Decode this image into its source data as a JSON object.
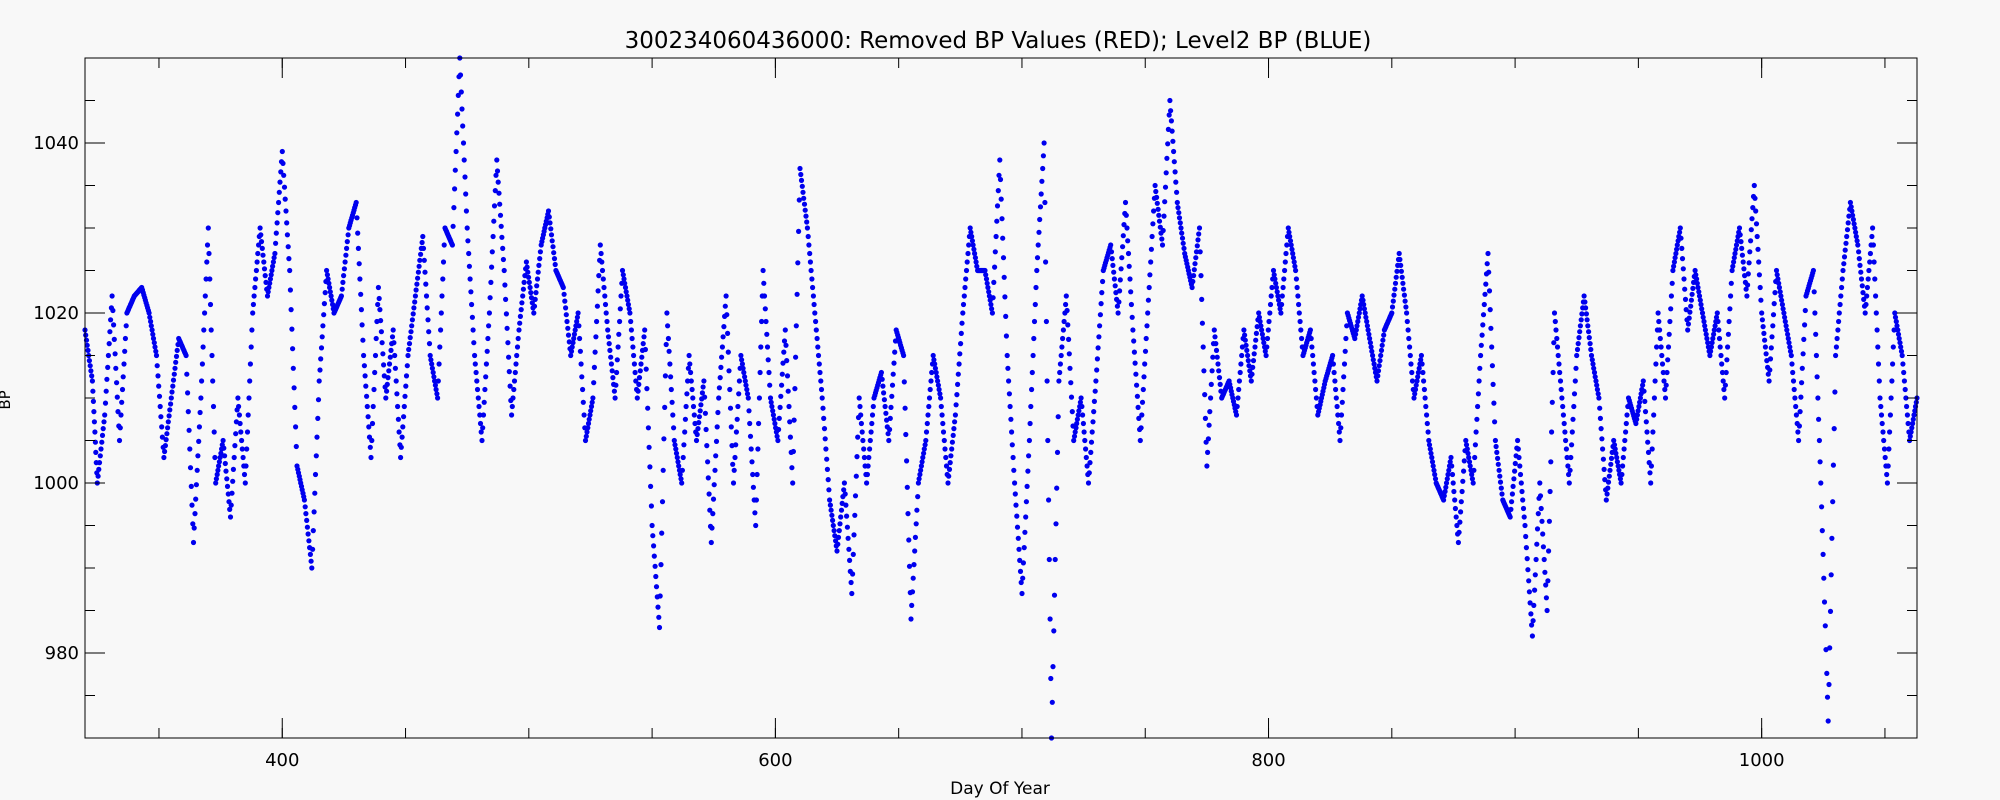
{
  "chart_data": {
    "type": "scatter",
    "title": "300234060436000: Removed BP Values (RED); Level2 BP (BLUE)",
    "xlabel": "Day Of Year",
    "ylabel": "BP",
    "xlim": [
      320,
      1063
    ],
    "ylim": [
      970,
      1050
    ],
    "x_ticks": [
      400,
      600,
      800,
      1000
    ],
    "y_ticks": [
      980,
      1000,
      1020,
      1040
    ],
    "x_minor_step": 50,
    "y_minor_step": 5,
    "grid": false,
    "legend": "none",
    "series": [
      {
        "color": "#0000ee",
        "marker": "dot",
        "points": [
          [
            320,
            1018
          ],
          [
            323,
            1012
          ],
          [
            325,
            1000
          ],
          [
            328,
            1008
          ],
          [
            331,
            1022
          ],
          [
            334,
            1005
          ],
          [
            337,
            1020
          ],
          [
            340,
            1022
          ],
          [
            343,
            1023
          ],
          [
            346,
            1020
          ],
          [
            349,
            1015
          ],
          [
            352,
            1003
          ],
          [
            355,
            1010
          ],
          [
            358,
            1017
          ],
          [
            361,
            1015
          ],
          [
            364,
            993
          ],
          [
            367,
            1010
          ],
          [
            370,
            1030
          ],
          [
            373,
            1000
          ],
          [
            376,
            1005
          ],
          [
            379,
            996
          ],
          [
            382,
            1010
          ],
          [
            385,
            1000
          ],
          [
            388,
            1020
          ],
          [
            391,
            1030
          ],
          [
            394,
            1022
          ],
          [
            397,
            1027
          ],
          [
            400,
            1039
          ],
          [
            403,
            1025
          ],
          [
            406,
            1002
          ],
          [
            409,
            998
          ],
          [
            412,
            990
          ],
          [
            415,
            1012
          ],
          [
            418,
            1025
          ],
          [
            421,
            1020
          ],
          [
            424,
            1022
          ],
          [
            427,
            1030
          ],
          [
            430,
            1033
          ],
          [
            433,
            1015
          ],
          [
            436,
            1003
          ],
          [
            439,
            1023
          ],
          [
            442,
            1010
          ],
          [
            445,
            1018
          ],
          [
            448,
            1003
          ],
          [
            451,
            1015
          ],
          [
            454,
            1022
          ],
          [
            457,
            1029
          ],
          [
            460,
            1015
          ],
          [
            463,
            1010
          ],
          [
            466,
            1030
          ],
          [
            469,
            1028
          ],
          [
            472,
            1050
          ],
          [
            475,
            1030
          ],
          [
            478,
            1015
          ],
          [
            481,
            1005
          ],
          [
            484,
            1020
          ],
          [
            487,
            1038
          ],
          [
            490,
            1025
          ],
          [
            493,
            1008
          ],
          [
            496,
            1018
          ],
          [
            499,
            1026
          ],
          [
            502,
            1020
          ],
          [
            505,
            1028
          ],
          [
            508,
            1032
          ],
          [
            511,
            1025
          ],
          [
            514,
            1023
          ],
          [
            517,
            1015
          ],
          [
            520,
            1020
          ],
          [
            523,
            1005
          ],
          [
            526,
            1010
          ],
          [
            529,
            1028
          ],
          [
            532,
            1018
          ],
          [
            535,
            1010
          ],
          [
            538,
            1025
          ],
          [
            541,
            1020
          ],
          [
            544,
            1010
          ],
          [
            547,
            1018
          ],
          [
            550,
            995
          ],
          [
            553,
            983
          ],
          [
            556,
            1020
          ],
          [
            559,
            1005
          ],
          [
            562,
            1000
          ],
          [
            565,
            1015
          ],
          [
            568,
            1005
          ],
          [
            571,
            1012
          ],
          [
            574,
            993
          ],
          [
            577,
            1010
          ],
          [
            580,
            1022
          ],
          [
            583,
            1000
          ],
          [
            586,
            1015
          ],
          [
            589,
            1010
          ],
          [
            592,
            995
          ],
          [
            595,
            1025
          ],
          [
            598,
            1010
          ],
          [
            601,
            1005
          ],
          [
            604,
            1018
          ],
          [
            607,
            1000
          ],
          [
            610,
            1037
          ],
          [
            613,
            1030
          ],
          [
            616,
            1020
          ],
          [
            619,
            1010
          ],
          [
            622,
            998
          ],
          [
            625,
            992
          ],
          [
            628,
            1000
          ],
          [
            631,
            987
          ],
          [
            634,
            1010
          ],
          [
            637,
            1000
          ],
          [
            640,
            1010
          ],
          [
            643,
            1013
          ],
          [
            646,
            1005
          ],
          [
            649,
            1018
          ],
          [
            652,
            1015
          ],
          [
            655,
            984
          ],
          [
            658,
            1000
          ],
          [
            661,
            1005
          ],
          [
            664,
            1015
          ],
          [
            667,
            1010
          ],
          [
            670,
            1000
          ],
          [
            673,
            1008
          ],
          [
            676,
            1020
          ],
          [
            679,
            1030
          ],
          [
            682,
            1025
          ],
          [
            685,
            1025
          ],
          [
            688,
            1020
          ],
          [
            691,
            1038
          ],
          [
            694,
            1015
          ],
          [
            697,
            1000
          ],
          [
            700,
            987
          ],
          [
            703,
            1005
          ],
          [
            706,
            1025
          ],
          [
            709,
            1040
          ],
          [
            712,
            970
          ],
          [
            715,
            1012
          ],
          [
            718,
            1022
          ],
          [
            721,
            1005
          ],
          [
            724,
            1010
          ],
          [
            727,
            1000
          ],
          [
            730,
            1012
          ],
          [
            733,
            1025
          ],
          [
            736,
            1028
          ],
          [
            739,
            1020
          ],
          [
            742,
            1033
          ],
          [
            745,
            1018
          ],
          [
            748,
            1005
          ],
          [
            751,
            1020
          ],
          [
            754,
            1035
          ],
          [
            757,
            1028
          ],
          [
            760,
            1045
          ],
          [
            763,
            1033
          ],
          [
            766,
            1027
          ],
          [
            769,
            1023
          ],
          [
            772,
            1030
          ],
          [
            775,
            1002
          ],
          [
            778,
            1018
          ],
          [
            781,
            1010
          ],
          [
            784,
            1012
          ],
          [
            787,
            1008
          ],
          [
            790,
            1018
          ],
          [
            793,
            1012
          ],
          [
            796,
            1020
          ],
          [
            799,
            1015
          ],
          [
            802,
            1025
          ],
          [
            805,
            1020
          ],
          [
            808,
            1030
          ],
          [
            811,
            1025
          ],
          [
            814,
            1015
          ],
          [
            817,
            1018
          ],
          [
            820,
            1008
          ],
          [
            823,
            1012
          ],
          [
            826,
            1015
          ],
          [
            829,
            1005
          ],
          [
            832,
            1020
          ],
          [
            835,
            1017
          ],
          [
            838,
            1022
          ],
          [
            841,
            1017
          ],
          [
            844,
            1012
          ],
          [
            847,
            1018
          ],
          [
            850,
            1020
          ],
          [
            853,
            1027
          ],
          [
            856,
            1020
          ],
          [
            859,
            1010
          ],
          [
            862,
            1015
          ],
          [
            865,
            1005
          ],
          [
            868,
            1000
          ],
          [
            871,
            998
          ],
          [
            874,
            1003
          ],
          [
            877,
            993
          ],
          [
            880,
            1005
          ],
          [
            883,
            1000
          ],
          [
            886,
            1015
          ],
          [
            889,
            1027
          ],
          [
            892,
            1005
          ],
          [
            895,
            998
          ],
          [
            898,
            996
          ],
          [
            901,
            1005
          ],
          [
            904,
            995
          ],
          [
            907,
            982
          ],
          [
            910,
            1000
          ],
          [
            913,
            985
          ],
          [
            916,
            1020
          ],
          [
            919,
            1010
          ],
          [
            922,
            1000
          ],
          [
            925,
            1015
          ],
          [
            928,
            1022
          ],
          [
            931,
            1015
          ],
          [
            934,
            1010
          ],
          [
            937,
            998
          ],
          [
            940,
            1005
          ],
          [
            943,
            1000
          ],
          [
            946,
            1010
          ],
          [
            949,
            1007
          ],
          [
            952,
            1012
          ],
          [
            955,
            1000
          ],
          [
            958,
            1020
          ],
          [
            961,
            1010
          ],
          [
            964,
            1025
          ],
          [
            967,
            1030
          ],
          [
            970,
            1018
          ],
          [
            973,
            1025
          ],
          [
            976,
            1020
          ],
          [
            979,
            1015
          ],
          [
            982,
            1020
          ],
          [
            985,
            1010
          ],
          [
            988,
            1025
          ],
          [
            991,
            1030
          ],
          [
            994,
            1022
          ],
          [
            997,
            1035
          ],
          [
            1000,
            1020
          ],
          [
            1003,
            1012
          ],
          [
            1006,
            1025
          ],
          [
            1009,
            1020
          ],
          [
            1012,
            1015
          ],
          [
            1015,
            1005
          ],
          [
            1018,
            1022
          ],
          [
            1021,
            1025
          ],
          [
            1024,
            1000
          ],
          [
            1027,
            972
          ],
          [
            1030,
            1015
          ],
          [
            1033,
            1025
          ],
          [
            1036,
            1033
          ],
          [
            1039,
            1028
          ],
          [
            1042,
            1020
          ],
          [
            1045,
            1030
          ],
          [
            1048,
            1010
          ],
          [
            1051,
            1000
          ],
          [
            1054,
            1020
          ],
          [
            1057,
            1015
          ],
          [
            1060,
            1005
          ],
          [
            1063,
            1010
          ]
        ]
      }
    ]
  }
}
